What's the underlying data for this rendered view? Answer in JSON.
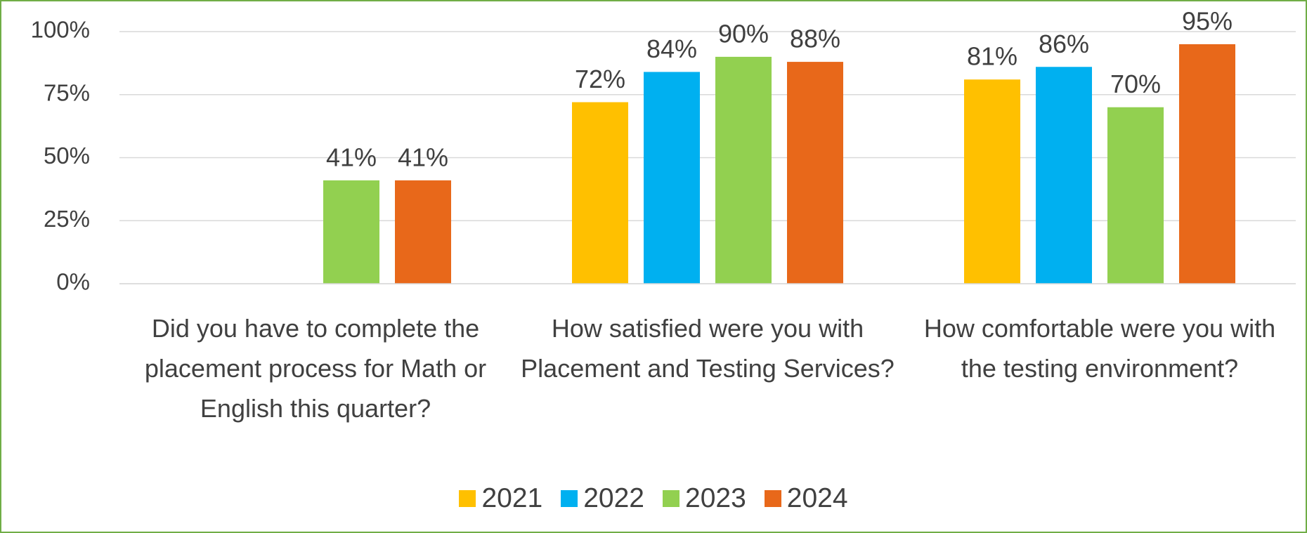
{
  "chart_data": {
    "type": "bar",
    "categories": [
      "Did you have to complete the placement process for Math or English this quarter?",
      "How satisfied were you with Placement and Testing Services?",
      "How comfortable were you with the testing environment?"
    ],
    "series": [
      {
        "name": "2021",
        "color": "#ffc000",
        "values": [
          null,
          72,
          81
        ],
        "value_labels": [
          null,
          "72%",
          "81%"
        ]
      },
      {
        "name": "2022",
        "color": "#00b0f0",
        "values": [
          null,
          84,
          86
        ],
        "value_labels": [
          null,
          "84%",
          "86%"
        ]
      },
      {
        "name": "2023",
        "color": "#92d050",
        "values": [
          41,
          90,
          70
        ],
        "value_labels": [
          "41%",
          "90%",
          "70%"
        ]
      },
      {
        "name": "2024",
        "color": "#e8681a",
        "values": [
          41,
          88,
          95
        ],
        "value_labels": [
          "41%",
          "88%",
          "95%"
        ]
      }
    ],
    "ylim": [
      0,
      100
    ],
    "yticks": [
      {
        "value": 0,
        "label": "0%"
      },
      {
        "value": 25,
        "label": "25%"
      },
      {
        "value": 50,
        "label": "50%"
      },
      {
        "value": 75,
        "label": "75%"
      },
      {
        "value": 100,
        "label": "100%"
      }
    ],
    "grid": true,
    "legend": "bottom"
  }
}
